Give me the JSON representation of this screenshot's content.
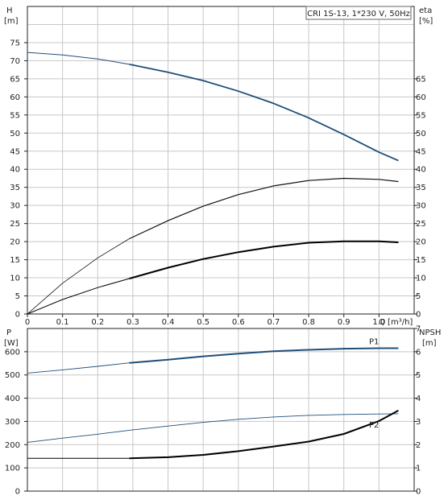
{
  "chart_data": [
    {
      "type": "line",
      "title": "CRI 1S-13, 1*230 V, 50Hz",
      "xlabel": "Q [m³/h]",
      "x_unit": "m³/h",
      "y_left_label": "H",
      "y_left_unit": "[m]",
      "y_right_label": "eta",
      "y_right_unit": "[%]",
      "xlim": [
        0,
        1.1
      ],
      "ylim_left": [
        0,
        85
      ],
      "ylim_right": [
        0,
        85
      ],
      "x_ticks": [
        "0",
        "0.1",
        "0.2",
        "0.3",
        "0.4",
        "0.5",
        "0.6",
        "0.7",
        "0.8",
        "0.9",
        "1.0"
      ],
      "y_left_ticks": [
        "0",
        "5",
        "10",
        "15",
        "20",
        "25",
        "30",
        "35",
        "40",
        "45",
        "50",
        "55",
        "60",
        "65",
        "70",
        "75"
      ],
      "y_right_ticks": [
        "0",
        "5",
        "10",
        "15",
        "20",
        "25",
        "30",
        "35",
        "40",
        "45",
        "50",
        "55",
        "60",
        "65"
      ],
      "grid": true,
      "series": [
        {
          "color": "#1f4e79",
          "x": [
            0,
            0.1,
            0.2,
            0.29,
            0.4,
            0.5,
            0.6,
            0.7,
            0.8,
            0.9,
            1.0,
            1.055
          ],
          "y": [
            72.3,
            71.6,
            70.5,
            69.0,
            66.8,
            64.5,
            61.6,
            58.2,
            54.2,
            49.6,
            44.7,
            42.4
          ]
        },
        {
          "color": "#111111",
          "x": [
            0,
            0.1,
            0.2,
            0.29,
            0.4,
            0.5,
            0.6,
            0.7,
            0.8,
            0.9,
            1.0,
            1.055
          ],
          "y": [
            0,
            8.5,
            15.5,
            20.8,
            25.8,
            29.8,
            33.0,
            35.4,
            36.9,
            37.5,
            37.2,
            36.6
          ]
        },
        {
          "color": "#000000",
          "x": [
            0,
            0.1,
            0.2,
            0.29,
            0.4,
            0.5,
            0.6,
            0.7,
            0.8,
            0.9,
            1.0,
            1.055
          ],
          "y": [
            0,
            4.0,
            7.3,
            9.8,
            12.8,
            15.2,
            17.1,
            18.6,
            19.7,
            20.1,
            20.1,
            19.8
          ]
        }
      ]
    },
    {
      "type": "line",
      "xlim": [
        0,
        1.1
      ],
      "y_left_label": "P",
      "y_left_unit": "[W]",
      "y_right_label": "NPSH",
      "y_right_unit": "[m]",
      "ylim_left": [
        0,
        700
      ],
      "ylim_right": [
        0,
        7
      ],
      "y_left_ticks": [
        "0",
        "100",
        "200",
        "300",
        "400",
        "500",
        "600"
      ],
      "y_right_ticks": [
        "0",
        "1",
        "2",
        "3",
        "4",
        "5",
        "6",
        "7"
      ],
      "grid": true,
      "series": [
        {
          "name": "P1",
          "color": "#1f4e79",
          "axis": "left",
          "x": [
            0,
            0.1,
            0.2,
            0.29,
            0.4,
            0.5,
            0.6,
            0.7,
            0.8,
            0.9,
            1.0,
            1.055
          ],
          "y": [
            508,
            522,
            537,
            552,
            566,
            580,
            592,
            602,
            608,
            613,
            615,
            615
          ]
        },
        {
          "name": "P2",
          "color": "#1f4e79",
          "axis": "left",
          "x": [
            0,
            0.1,
            0.2,
            0.29,
            0.4,
            0.5,
            0.6,
            0.7,
            0.8,
            0.9,
            1.0,
            1.055
          ],
          "y": [
            210,
            228,
            245,
            262,
            280,
            296,
            309,
            319,
            326,
            330,
            332,
            333
          ]
        },
        {
          "color": "#000000",
          "axis": "right",
          "x": [
            0,
            0.1,
            0.2,
            0.29,
            0.4,
            0.5,
            0.6,
            0.7,
            0.8,
            0.9,
            1.0,
            1.055
          ],
          "y": [
            1.41,
            1.41,
            1.41,
            1.41,
            1.46,
            1.56,
            1.72,
            1.92,
            2.13,
            2.46,
            3.02,
            3.47
          ]
        }
      ]
    }
  ]
}
